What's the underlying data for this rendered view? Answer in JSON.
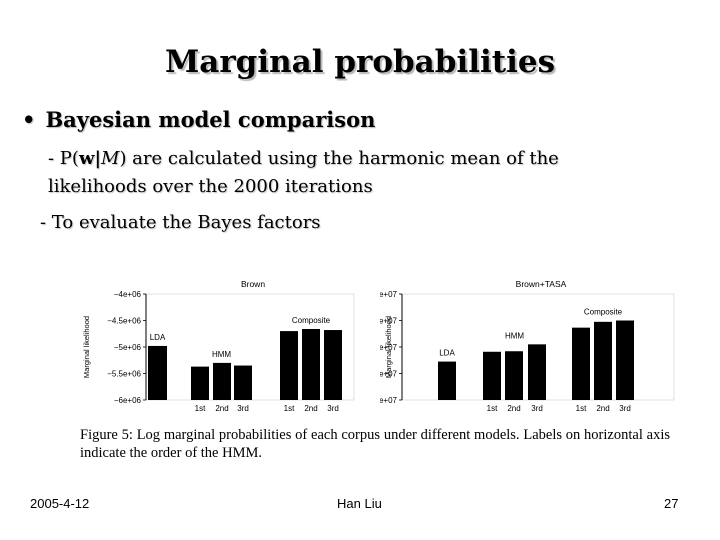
{
  "slide": {
    "title": "Marginal probabilities",
    "bullet": "Bayesian model comparison",
    "bullet_symbol": "•",
    "sub1": {
      "dash": "- P(",
      "bold_w": "w",
      "bar": "|",
      "model_symbol": "M",
      "rest_line1": ") are calculated using the harmonic mean of the",
      "line2": "likelihoods over the 2000 iterations"
    },
    "sub2": "-  To evaluate the Bayes factors",
    "caption": "Figure 5:  Log marginal probabilities of each corpus under different models.  Labels on horizontal axis indicate the order of the HMM.",
    "footer": {
      "date": "2005-4-12",
      "author": "Han Liu",
      "page": "27"
    }
  },
  "chart_data": [
    {
      "type": "bar",
      "title": "Brown",
      "ylabel": "Marginal likelihood",
      "ylim": [
        -6000000.0,
        -4000000.0
      ],
      "yticks": [
        -4000000.0,
        -4500000.0,
        -5000000.0,
        -5500000.0,
        -6000000.0
      ],
      "ytick_labels": [
        "−4e+06",
        "−4.5e+06",
        "−5e+06",
        "−5.5e+06",
        "−6e+06"
      ],
      "groups": [
        {
          "label": "LDA",
          "values": [
            -4980000.0
          ],
          "tick_labels": [
            ""
          ]
        },
        {
          "label": "HMM",
          "values": [
            -5370000.0,
            -5300000.0,
            -5350000.0
          ],
          "tick_labels": [
            "1st",
            "2nd",
            "3rd"
          ]
        },
        {
          "label": "Composite",
          "values": [
            -4700000.0,
            -4660000.0,
            -4680000.0
          ],
          "tick_labels": [
            "1st",
            "2nd",
            "3rd"
          ]
        }
      ]
    },
    {
      "type": "bar",
      "title": "Brown+TASA",
      "ylabel": "Marginal likelihood",
      "ylim": [
        -80000000.0,
        -40000000.0
      ],
      "yticks": [
        -40000000.0,
        -50000000.0,
        -60000000.0,
        -70000000.0,
        -80000000.0
      ],
      "ytick_labels": [
        "−4e+07",
        "−5e+07",
        "−6e+07",
        "−7e+07",
        "−8e+07"
      ],
      "groups": [
        {
          "label": "LDA",
          "values": [
            -65500000.0
          ],
          "tick_labels": [
            ""
          ]
        },
        {
          "label": "HMM",
          "values": [
            -61800000.0,
            -61600000.0,
            -59000000.0
          ],
          "tick_labels": [
            "1st",
            "2nd",
            "3rd"
          ]
        },
        {
          "label": "Composite",
          "values": [
            -52700000.0,
            -50500000.0,
            -50000000.0
          ],
          "tick_labels": [
            "1st",
            "2nd",
            "3rd"
          ]
        }
      ]
    }
  ]
}
